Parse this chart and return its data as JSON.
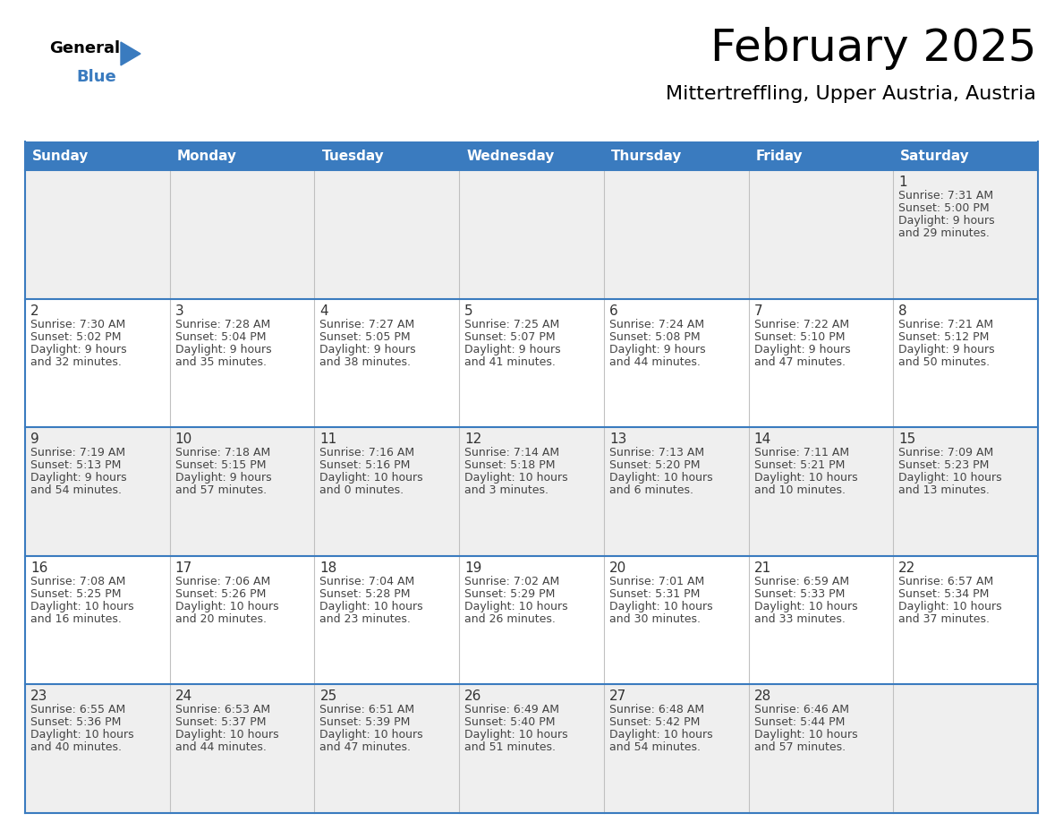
{
  "title": "February 2025",
  "subtitle": "Mittertreffling, Upper Austria, Austria",
  "header_color": "#3a7bbf",
  "header_text_color": "#ffffff",
  "day_names": [
    "Sunday",
    "Monday",
    "Tuesday",
    "Wednesday",
    "Thursday",
    "Friday",
    "Saturday"
  ],
  "bg_color": "#ffffff",
  "cell_bg_row0": "#efefef",
  "cell_bg_row1": "#ffffff",
  "cell_bg_row2": "#efefef",
  "cell_bg_row3": "#ffffff",
  "cell_bg_row4": "#efefef",
  "border_color": "#3a7bbf",
  "sep_color": "#c0c0c0",
  "text_color": "#444444",
  "day_num_color": "#333333",
  "calendar_data": [
    [
      null,
      null,
      null,
      null,
      null,
      null,
      {
        "day": "1",
        "sunrise": "7:31 AM",
        "sunset": "5:00 PM",
        "daylight": "9 hours",
        "daylight2": "and 29 minutes."
      }
    ],
    [
      {
        "day": "2",
        "sunrise": "7:30 AM",
        "sunset": "5:02 PM",
        "daylight": "9 hours",
        "daylight2": "and 32 minutes."
      },
      {
        "day": "3",
        "sunrise": "7:28 AM",
        "sunset": "5:04 PM",
        "daylight": "9 hours",
        "daylight2": "and 35 minutes."
      },
      {
        "day": "4",
        "sunrise": "7:27 AM",
        "sunset": "5:05 PM",
        "daylight": "9 hours",
        "daylight2": "and 38 minutes."
      },
      {
        "day": "5",
        "sunrise": "7:25 AM",
        "sunset": "5:07 PM",
        "daylight": "9 hours",
        "daylight2": "and 41 minutes."
      },
      {
        "day": "6",
        "sunrise": "7:24 AM",
        "sunset": "5:08 PM",
        "daylight": "9 hours",
        "daylight2": "and 44 minutes."
      },
      {
        "day": "7",
        "sunrise": "7:22 AM",
        "sunset": "5:10 PM",
        "daylight": "9 hours",
        "daylight2": "and 47 minutes."
      },
      {
        "day": "8",
        "sunrise": "7:21 AM",
        "sunset": "5:12 PM",
        "daylight": "9 hours",
        "daylight2": "and 50 minutes."
      }
    ],
    [
      {
        "day": "9",
        "sunrise": "7:19 AM",
        "sunset": "5:13 PM",
        "daylight": "9 hours",
        "daylight2": "and 54 minutes."
      },
      {
        "day": "10",
        "sunrise": "7:18 AM",
        "sunset": "5:15 PM",
        "daylight": "9 hours",
        "daylight2": "and 57 minutes."
      },
      {
        "day": "11",
        "sunrise": "7:16 AM",
        "sunset": "5:16 PM",
        "daylight": "10 hours",
        "daylight2": "and 0 minutes."
      },
      {
        "day": "12",
        "sunrise": "7:14 AM",
        "sunset": "5:18 PM",
        "daylight": "10 hours",
        "daylight2": "and 3 minutes."
      },
      {
        "day": "13",
        "sunrise": "7:13 AM",
        "sunset": "5:20 PM",
        "daylight": "10 hours",
        "daylight2": "and 6 minutes."
      },
      {
        "day": "14",
        "sunrise": "7:11 AM",
        "sunset": "5:21 PM",
        "daylight": "10 hours",
        "daylight2": "and 10 minutes."
      },
      {
        "day": "15",
        "sunrise": "7:09 AM",
        "sunset": "5:23 PM",
        "daylight": "10 hours",
        "daylight2": "and 13 minutes."
      }
    ],
    [
      {
        "day": "16",
        "sunrise": "7:08 AM",
        "sunset": "5:25 PM",
        "daylight": "10 hours",
        "daylight2": "and 16 minutes."
      },
      {
        "day": "17",
        "sunrise": "7:06 AM",
        "sunset": "5:26 PM",
        "daylight": "10 hours",
        "daylight2": "and 20 minutes."
      },
      {
        "day": "18",
        "sunrise": "7:04 AM",
        "sunset": "5:28 PM",
        "daylight": "10 hours",
        "daylight2": "and 23 minutes."
      },
      {
        "day": "19",
        "sunrise": "7:02 AM",
        "sunset": "5:29 PM",
        "daylight": "10 hours",
        "daylight2": "and 26 minutes."
      },
      {
        "day": "20",
        "sunrise": "7:01 AM",
        "sunset": "5:31 PM",
        "daylight": "10 hours",
        "daylight2": "and 30 minutes."
      },
      {
        "day": "21",
        "sunrise": "6:59 AM",
        "sunset": "5:33 PM",
        "daylight": "10 hours",
        "daylight2": "and 33 minutes."
      },
      {
        "day": "22",
        "sunrise": "6:57 AM",
        "sunset": "5:34 PM",
        "daylight": "10 hours",
        "daylight2": "and 37 minutes."
      }
    ],
    [
      {
        "day": "23",
        "sunrise": "6:55 AM",
        "sunset": "5:36 PM",
        "daylight": "10 hours",
        "daylight2": "and 40 minutes."
      },
      {
        "day": "24",
        "sunrise": "6:53 AM",
        "sunset": "5:37 PM",
        "daylight": "10 hours",
        "daylight2": "and 44 minutes."
      },
      {
        "day": "25",
        "sunrise": "6:51 AM",
        "sunset": "5:39 PM",
        "daylight": "10 hours",
        "daylight2": "and 47 minutes."
      },
      {
        "day": "26",
        "sunrise": "6:49 AM",
        "sunset": "5:40 PM",
        "daylight": "10 hours",
        "daylight2": "and 51 minutes."
      },
      {
        "day": "27",
        "sunrise": "6:48 AM",
        "sunset": "5:42 PM",
        "daylight": "10 hours",
        "daylight2": "and 54 minutes."
      },
      {
        "day": "28",
        "sunrise": "6:46 AM",
        "sunset": "5:44 PM",
        "daylight": "10 hours",
        "daylight2": "and 57 minutes."
      },
      null
    ]
  ],
  "row_bg_colors": [
    "#efefef",
    "#ffffff",
    "#efefef",
    "#ffffff",
    "#efefef"
  ],
  "logo_general_color": "#000000",
  "logo_blue_color": "#3a7bbf",
  "logo_triangle_color": "#3a7bbf",
  "title_fontsize": 36,
  "subtitle_fontsize": 16,
  "header_fontsize": 11,
  "day_num_fontsize": 11,
  "cell_fontsize": 9
}
